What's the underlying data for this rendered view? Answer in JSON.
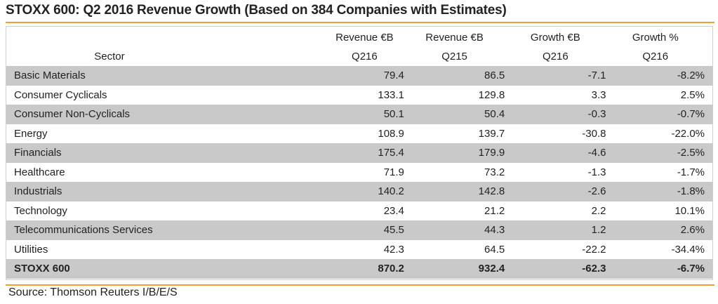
{
  "title": "STOXX 600: Q2 2016 Revenue Growth (Based on 384 Companies with Estimates)",
  "headers": {
    "row1": [
      "",
      "Revenue €B",
      "Revenue €B",
      "Growth €B",
      "Growth %"
    ],
    "row2": [
      "Sector",
      "Q216",
      "Q215",
      "Q216",
      "Q216"
    ]
  },
  "rows": [
    {
      "sector": "Basic Materials",
      "rev_q216": "79.4",
      "rev_q215": "86.5",
      "growth_eb": "-7.1",
      "growth_pct": "-8.2%"
    },
    {
      "sector": "Consumer Cyclicals",
      "rev_q216": "133.1",
      "rev_q215": "129.8",
      "growth_eb": "3.3",
      "growth_pct": "2.5%"
    },
    {
      "sector": "Consumer Non-Cyclicals",
      "rev_q216": "50.1",
      "rev_q215": "50.4",
      "growth_eb": "-0.3",
      "growth_pct": "-0.7%"
    },
    {
      "sector": "Energy",
      "rev_q216": "108.9",
      "rev_q215": "139.7",
      "growth_eb": "-30.8",
      "growth_pct": "-22.0%"
    },
    {
      "sector": "Financials",
      "rev_q216": "175.4",
      "rev_q215": "179.9",
      "growth_eb": "-4.6",
      "growth_pct": "-2.5%"
    },
    {
      "sector": "Healthcare",
      "rev_q216": "71.9",
      "rev_q215": "73.2",
      "growth_eb": "-1.3",
      "growth_pct": "-1.7%"
    },
    {
      "sector": "Industrials",
      "rev_q216": "140.2",
      "rev_q215": "142.8",
      "growth_eb": "-2.6",
      "growth_pct": "-1.8%"
    },
    {
      "sector": "Technology",
      "rev_q216": "23.4",
      "rev_q215": "21.2",
      "growth_eb": "2.2",
      "growth_pct": "10.1%"
    },
    {
      "sector": "Telecommunications Services",
      "rev_q216": "45.5",
      "rev_q215": "44.3",
      "growth_eb": "1.2",
      "growth_pct": "2.6%"
    },
    {
      "sector": "Utilities",
      "rev_q216": "42.3",
      "rev_q215": "64.5",
      "growth_eb": "-22.2",
      "growth_pct": "-34.4%"
    }
  ],
  "total": {
    "sector": "STOXX 600",
    "rev_q216": "870.2",
    "rev_q215": "932.4",
    "growth_eb": "-62.3",
    "growth_pct": "-6.7%"
  },
  "source": "Source: Thomson Reuters I/B/E/S",
  "colors": {
    "accent_rule": "#f0a030",
    "row_shade": "#c9c9c9"
  }
}
